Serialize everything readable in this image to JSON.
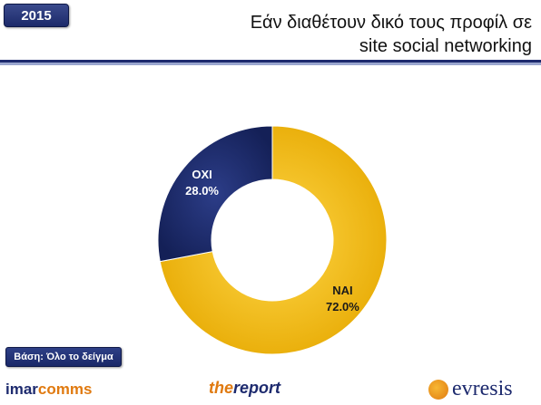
{
  "header": {
    "year": "2015",
    "title_line1": "Εάν διαθέτουν δικό τους προφίλ σε",
    "title_line2": "site social networking"
  },
  "chart_data": {
    "type": "pie",
    "donut": true,
    "title": "Εάν διαθέτουν δικό τους προφίλ σε site social networking",
    "slices": [
      {
        "label": "ΝΑΙ",
        "value": 72.0,
        "value_label": "72.0%",
        "color": "#f2b705"
      },
      {
        "label": "ΟΧΙ",
        "value": 28.0,
        "value_label": "28.0%",
        "color": "#1c2a6a"
      }
    ]
  },
  "footer": {
    "base_note": "Βάση: Όλο το δείγμα",
    "logos": {
      "imarcomms_part1": "imar",
      "imarcomms_part2": "comms",
      "report_part1": "the",
      "report_part2": "report",
      "evresis": "evresis"
    }
  },
  "colors": {
    "brand_navy": "#1d2a6e",
    "accent_orange": "#e07a10",
    "slice_yes": "#f2b705",
    "slice_no": "#1c2a6a"
  }
}
